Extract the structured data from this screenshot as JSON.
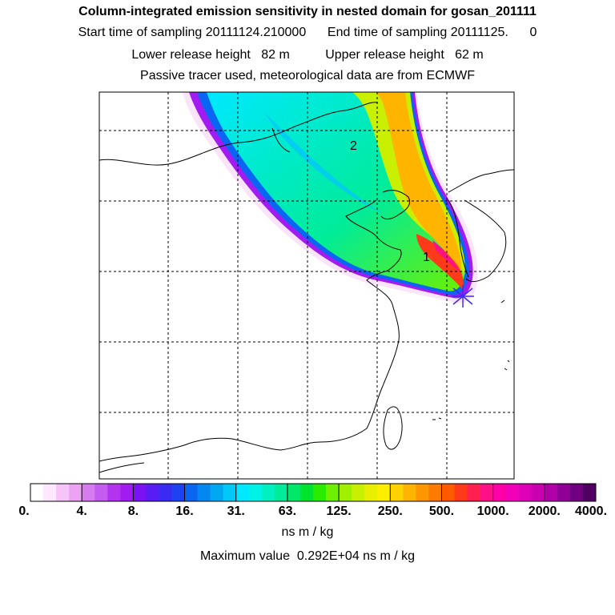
{
  "header": {
    "title": "Column-integrated emission sensitivity in nested domain for gosan_201111",
    "sampling": "Start time of sampling 20111124.210000      End time of sampling 20111125.      0",
    "release": "Lower release height   82 m          Upper release height   62 m",
    "tracer": "Passive tracer used, meteorological data are from ECMWF"
  },
  "map": {
    "markers": [
      {
        "label": "1"
      },
      {
        "label": "2"
      }
    ],
    "release_site_symbol": "star-marker-icon"
  },
  "colorbar": {
    "tick_labels": [
      "0.",
      "4.",
      "8.",
      "16.",
      "31.",
      "63.",
      "125.",
      "250.",
      "500.",
      "1000.",
      "2000.",
      "4000."
    ],
    "colors": [
      "#ffffff",
      "#fde8fd",
      "#f7c4f7",
      "#eba3f2",
      "#d77cf0",
      "#c45cef",
      "#b334ef",
      "#a21bf0",
      "#7a12f3",
      "#5a1cf4",
      "#3a2bf3",
      "#1d42f2",
      "#0a66f2",
      "#0388f1",
      "#00a8f4",
      "#00c8f7",
      "#00e8ff",
      "#00f2e6",
      "#00f0c2",
      "#00ec98",
      "#00e86a",
      "#00e42e",
      "#2aec00",
      "#6ef000",
      "#a0f000",
      "#c8f000",
      "#e8f000",
      "#ffee00",
      "#ffd200",
      "#ffb400",
      "#ff9600",
      "#ff7a00",
      "#ff5a00",
      "#ff3a1a",
      "#ff2050",
      "#ff1088",
      "#ff00a8",
      "#f000b8",
      "#de00b8",
      "#c800b0",
      "#b000a8",
      "#900098",
      "#700080",
      "#500060"
    ],
    "units": "ns m / kg"
  },
  "max_value_text": "Maximum value  0.292E+04 ns m / kg"
}
